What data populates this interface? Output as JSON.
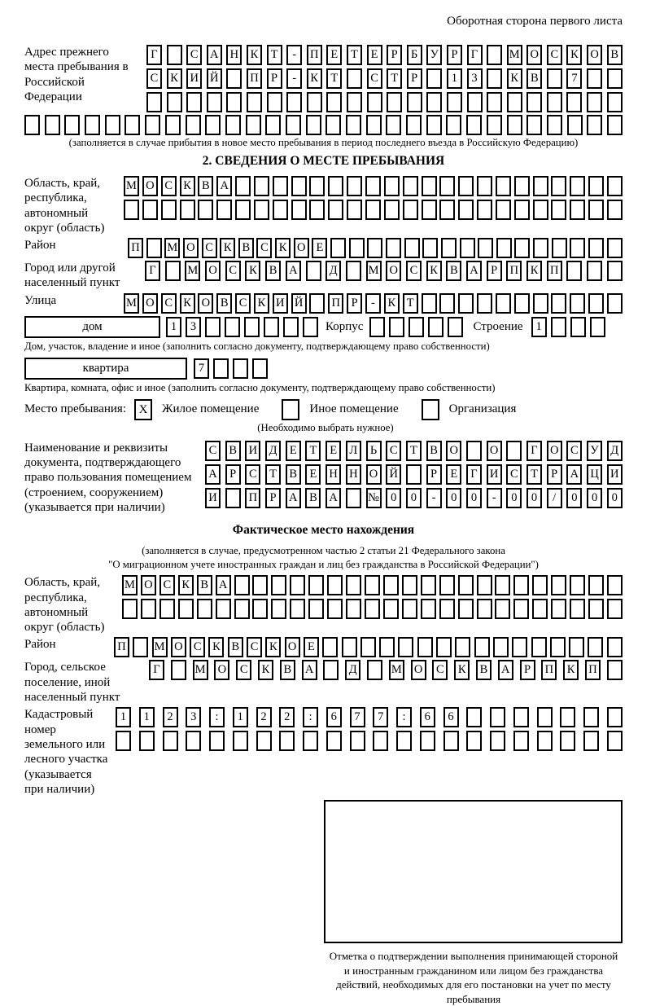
{
  "header": {
    "note": "Оборотная сторона первого листа"
  },
  "colors": {
    "ink": "#000000",
    "paper": "#ffffff"
  },
  "prev_address": {
    "label": "Адрес прежнего места пребывания в Российской Федерации",
    "grid_rows": [
      {
        "cells": 24,
        "value": "Г САНКТ-ПЕТЕРБУРГ МОСКОВ"
      },
      {
        "cells": 24,
        "value": "СКИЙ ПР-КТ СТР 13 КВ 7"
      },
      {
        "cells": 24,
        "value": ""
      }
    ],
    "full_row": {
      "cells": 30,
      "value": ""
    },
    "note": "(заполняется в случае прибытия в новое место пребывания в период последнего въезда в Российскую Федерацию)"
  },
  "section2": {
    "title": "2. СВЕДЕНИЯ О МЕСТЕ ПРЕБЫВАНИЯ",
    "region": {
      "label": "Область, край, республика, автономный округ (область)",
      "rows": [
        {
          "cells": 27,
          "value": "МОСКВА"
        },
        {
          "cells": 27,
          "value": ""
        }
      ]
    },
    "district": {
      "label": "Район",
      "row": {
        "cells": 27,
        "value": "П МОСКВСКОЕ"
      }
    },
    "city": {
      "label": "Город или другой населенный пункт",
      "row": {
        "cells": 24,
        "value": "Г МОСКВА Д МОСКВАРПКП"
      }
    },
    "street": {
      "label": "Улица",
      "row": {
        "cells": 27,
        "value": "МОСКОВСКИЙ ПР-КТ"
      }
    },
    "house": {
      "box_label": "дом",
      "row": {
        "cells": 8,
        "value": "13"
      },
      "korpus_label": "Корпус",
      "korpus_row": {
        "cells": 5,
        "value": ""
      },
      "stroenie_label": "Строение",
      "stroenie_row": {
        "cells": 4,
        "value": "1"
      }
    },
    "house_note": "Дом, участок, владение и иное (заполнить согласно документу, подтверждающему право собственности)",
    "apartment": {
      "box_label": "квартира",
      "row": {
        "cells": 4,
        "value": "7"
      }
    },
    "apartment_note": "Квартира, комната, офис и иное (заполнить согласно документу, подтверждающему право собственности)",
    "stay_type": {
      "label": "Место пребывания:",
      "options": [
        {
          "label": "Жилое помещение",
          "checked": true
        },
        {
          "label": "Иное помещение",
          "checked": false
        },
        {
          "label": "Организация",
          "checked": false
        }
      ],
      "mark": "X",
      "note": "(Необходимо выбрать нужное)"
    },
    "document": {
      "label": "Наименование и реквизиты документа, подтверждающего право пользования помещением (строением, сооружением) (указывается при наличии)",
      "rows": [
        {
          "cells": 21,
          "value": "СВИДЕТЕЛЬСТВО О ГОСУД"
        },
        {
          "cells": 21,
          "value": "АРСТВЕННОЙ РЕГИСТРАЦИ"
        },
        {
          "cells": 21,
          "value": "И ПРАВА №00-00-00/000"
        }
      ]
    }
  },
  "actual_location": {
    "title": "Фактическое место нахождения",
    "note_line1": "(заполняется в случае, предусмотренном частью 2 статьи 21 Федерального закона",
    "note_line2": "\"О миграционном учете иностранных граждан и лиц без гражданства в Российской Федерации\")",
    "region": {
      "label": "Область, край, республика, автономный округ (область)",
      "rows": [
        {
          "cells": 27,
          "value": "МОСКВА"
        },
        {
          "cells": 27,
          "value": ""
        }
      ]
    },
    "district": {
      "label": "Район",
      "row": {
        "cells": 27,
        "value": "П МОСКВСКОЕ"
      }
    },
    "city": {
      "label": "Город, сельское поселение, иной населенный пункт",
      "row": {
        "cells": 22,
        "value": "Г МОСКВА Д МОСКВАРПКП"
      }
    },
    "cadastral": {
      "label": "Кадастровый номер земельного или лесного участка (указывается при наличии)",
      "rows": [
        {
          "cells": 22,
          "value": "1123:122:677:66"
        },
        {
          "cells": 22,
          "value": ""
        }
      ]
    },
    "stamp_note": "Отметка о подтверждении выполнения принимающей стороной и иностранным гражданином или лицом без гражданства действий, необходимых для его постановки на учет по месту пребывания"
  }
}
